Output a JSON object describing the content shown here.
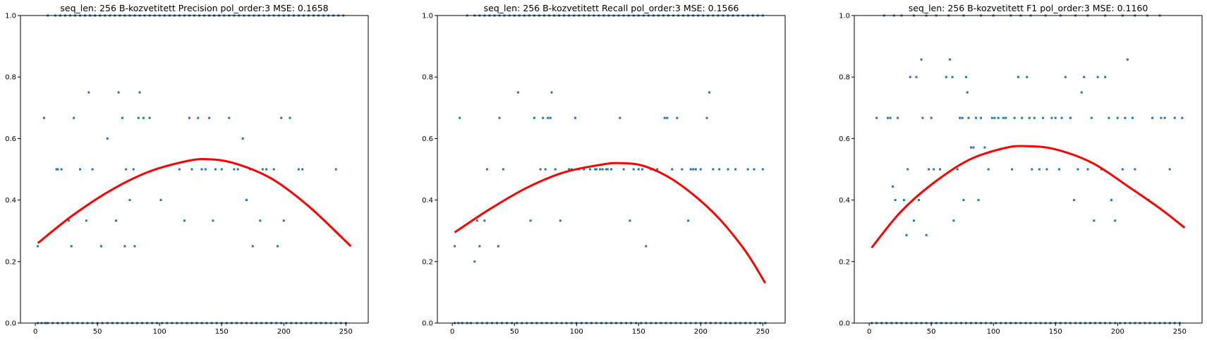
{
  "colors": {
    "scatter": "#1f77b4",
    "fit": "#ff0000",
    "axes": "#000000"
  },
  "chart_data": [
    {
      "type": "scatter",
      "title": "seq_len: 256    B-kozvetitett   Precision   pol_order:3   MSE: 0.1658",
      "xlim": [
        -12,
        268
      ],
      "ylim": [
        0,
        1
      ],
      "xticks": [
        0,
        50,
        100,
        150,
        200,
        250
      ],
      "yticks": [
        0.0,
        0.2,
        0.4,
        0.6,
        0.8,
        1.0
      ],
      "grid": false,
      "fit_curve": {
        "x": [
          2,
          30,
          60,
          90,
          120,
          138,
          160,
          190,
          220,
          254
        ],
        "y": [
          0.26,
          0.35,
          0.43,
          0.49,
          0.525,
          0.533,
          0.52,
          0.47,
          0.38,
          0.25
        ]
      },
      "points": {
        "x": [
          2,
          5,
          8,
          10,
          14,
          18,
          22,
          26,
          30,
          34,
          38,
          42,
          46,
          50,
          54,
          58,
          62,
          66,
          70,
          74,
          78,
          82,
          86,
          90,
          94,
          98,
          102,
          106,
          110,
          114,
          118,
          122,
          126,
          130,
          134,
          138,
          142,
          146,
          150,
          154,
          158,
          162,
          166,
          170,
          174,
          178,
          182,
          186,
          190,
          194,
          198,
          202,
          206,
          210,
          214,
          218,
          222,
          226,
          230,
          234,
          238,
          242,
          246,
          250,
          10,
          16,
          20,
          24,
          28,
          32,
          36,
          40,
          44,
          48,
          52,
          56,
          60,
          64,
          68,
          72,
          76,
          80,
          84,
          88,
          92,
          96,
          100,
          104,
          108,
          112,
          116,
          120,
          124,
          128,
          132,
          136,
          140,
          144,
          148,
          152,
          156,
          160,
          164,
          168,
          172,
          176,
          180,
          184,
          188,
          192,
          196,
          200,
          204,
          208,
          212,
          216,
          220,
          224,
          228,
          232,
          236,
          240,
          244,
          248,
          2,
          7,
          17,
          18,
          21,
          27,
          29,
          31,
          36,
          41,
          43,
          46,
          53,
          58,
          65,
          67,
          70,
          72,
          73,
          76,
          79,
          80,
          83,
          84,
          87,
          92,
          101,
          116,
          120,
          124,
          126,
          131,
          134,
          137,
          140,
          143,
          145,
          150,
          156,
          160,
          163,
          167,
          170,
          173,
          175,
          181,
          183,
          186,
          192,
          195,
          198,
          200,
          205,
          212,
          215,
          242
        ],
        "y": [
          0,
          0,
          0,
          0,
          0,
          0,
          0,
          0,
          0,
          0,
          0,
          0,
          0,
          0,
          0,
          0,
          0,
          0,
          0,
          0,
          0,
          0,
          0,
          0,
          0,
          0,
          0,
          0,
          0,
          0,
          0,
          0,
          0,
          0,
          0,
          0,
          0,
          0,
          0,
          0,
          0,
          0,
          0,
          0,
          0,
          0,
          0,
          0,
          0,
          0,
          0,
          0,
          0,
          0,
          0,
          0,
          0,
          0,
          0,
          0,
          0,
          0,
          0,
          0,
          1,
          1,
          1,
          1,
          1,
          1,
          1,
          1,
          1,
          1,
          1,
          1,
          1,
          1,
          1,
          1,
          1,
          1,
          1,
          1,
          1,
          1,
          1,
          1,
          1,
          1,
          1,
          1,
          1,
          1,
          1,
          1,
          1,
          1,
          1,
          1,
          1,
          1,
          1,
          1,
          1,
          1,
          1,
          1,
          1,
          1,
          1,
          1,
          1,
          1,
          1,
          1,
          1,
          1,
          1,
          1,
          1,
          1,
          1,
          1,
          0.25,
          0.667,
          0.5,
          0.5,
          0.5,
          0.333,
          0.25,
          0.667,
          0.5,
          0.333,
          0.75,
          0.5,
          0.25,
          0.6,
          0.333,
          0.75,
          0.667,
          0.25,
          0.5,
          0.4,
          0.5,
          0.25,
          0.667,
          0.75,
          0.667,
          0.667,
          0.4,
          0.5,
          0.333,
          0.667,
          0.5,
          0.667,
          0.5,
          0.5,
          0.667,
          0.333,
          0.5,
          0.5,
          0.667,
          0.5,
          0.5,
          0.6,
          0.4,
          0.5,
          0.25,
          0.333,
          0.5,
          0.5,
          0.5,
          0.25,
          0.667,
          0.333,
          0.667,
          0.5,
          0.5,
          0.5
        ]
      }
    },
    {
      "type": "scatter",
      "title": "seq_len: 256    B-kozvetitett    Recall   pol_order:3   MSE: 0.1566",
      "xlim": [
        -12,
        268
      ],
      "ylim": [
        0,
        1
      ],
      "xticks": [
        0,
        50,
        100,
        150,
        200,
        250
      ],
      "yticks": [
        0.0,
        0.2,
        0.4,
        0.6,
        0.8,
        1.0
      ],
      "grid": false,
      "fit_curve": {
        "x": [
          2,
          30,
          60,
          90,
          120,
          135,
          155,
          180,
          210,
          235,
          252
        ],
        "y": [
          0.295,
          0.37,
          0.44,
          0.49,
          0.515,
          0.52,
          0.51,
          0.46,
          0.36,
          0.24,
          0.13
        ]
      },
      "points": {
        "x": [
          2,
          5,
          8,
          12,
          15,
          20,
          24,
          28,
          32,
          36,
          40,
          44,
          48,
          52,
          56,
          60,
          64,
          68,
          72,
          76,
          80,
          84,
          88,
          92,
          96,
          100,
          104,
          108,
          112,
          116,
          120,
          124,
          128,
          132,
          136,
          140,
          144,
          148,
          152,
          156,
          160,
          164,
          168,
          172,
          176,
          180,
          184,
          188,
          192,
          196,
          200,
          204,
          208,
          212,
          216,
          220,
          224,
          228,
          232,
          236,
          240,
          244,
          248,
          252,
          12,
          18,
          22,
          26,
          30,
          34,
          38,
          42,
          46,
          50,
          54,
          58,
          62,
          66,
          70,
          74,
          78,
          82,
          86,
          90,
          94,
          98,
          102,
          106,
          110,
          114,
          118,
          122,
          126,
          130,
          134,
          138,
          142,
          146,
          150,
          154,
          158,
          162,
          166,
          170,
          174,
          178,
          182,
          186,
          190,
          194,
          198,
          202,
          206,
          210,
          214,
          218,
          222,
          226,
          230,
          234,
          238,
          242,
          246,
          250,
          2,
          6,
          18,
          20,
          22,
          26,
          28,
          37,
          38,
          41,
          53,
          63,
          66,
          71,
          73,
          75,
          77,
          79,
          80,
          83,
          87,
          94,
          96,
          99,
          102,
          106,
          111,
          115,
          116,
          119,
          121,
          124,
          125,
          128,
          135,
          138,
          143,
          146,
          150,
          153,
          156,
          160,
          165,
          171,
          173,
          177,
          181,
          185,
          190,
          192,
          194,
          196,
          200,
          205,
          207,
          210,
          215,
          222,
          228,
          238,
          243,
          250
        ],
        "y": [
          0,
          0,
          0,
          0,
          0,
          0,
          0,
          0,
          0,
          0,
          0,
          0,
          0,
          0,
          0,
          0,
          0,
          0,
          0,
          0,
          0,
          0,
          0,
          0,
          0,
          0,
          0,
          0,
          0,
          0,
          0,
          0,
          0,
          0,
          0,
          0,
          0,
          0,
          0,
          0,
          0,
          0,
          0,
          0,
          0,
          0,
          0,
          0,
          0,
          0,
          0,
          0,
          0,
          0,
          0,
          0,
          0,
          0,
          0,
          0,
          0,
          0,
          0,
          0,
          1,
          1,
          1,
          1,
          1,
          1,
          1,
          1,
          1,
          1,
          1,
          1,
          1,
          1,
          1,
          1,
          1,
          1,
          1,
          1,
          1,
          1,
          1,
          1,
          1,
          1,
          1,
          1,
          1,
          1,
          1,
          1,
          1,
          1,
          1,
          1,
          1,
          1,
          1,
          1,
          1,
          1,
          1,
          1,
          1,
          1,
          1,
          1,
          1,
          1,
          1,
          1,
          1,
          1,
          1,
          1,
          1,
          1,
          1,
          1,
          0.25,
          0.667,
          0.2,
          0.333,
          0.25,
          0.333,
          0.5,
          0.25,
          0.667,
          0.5,
          0.75,
          0.333,
          0.667,
          0.5,
          0.667,
          0.5,
          0.667,
          0.667,
          0.75,
          0.5,
          0.333,
          0.5,
          0.5,
          0.667,
          0.5,
          0.5,
          0.5,
          0.5,
          0.5,
          0.5,
          0.5,
          0.5,
          0.5,
          0.5,
          0.667,
          0.5,
          0.333,
          0.5,
          0.5,
          0.5,
          0.25,
          0.5,
          0.5,
          0.667,
          0.667,
          0.5,
          0.667,
          0.5,
          0.333,
          0.5,
          0.5,
          0.5,
          0.5,
          0.667,
          0.75,
          0.5,
          0.5,
          0.5,
          0.5,
          0.5,
          0.5,
          0.5
        ]
      }
    },
    {
      "type": "scatter",
      "title": "seq_len: 256    B-kozvetitett    F1   pol_order:3   MSE: 0.1160",
      "xlim": [
        -12,
        268
      ],
      "ylim": [
        0,
        1
      ],
      "xticks": [
        0,
        50,
        100,
        150,
        200,
        250
      ],
      "yticks": [
        0.0,
        0.2,
        0.4,
        0.6,
        0.8,
        1.0
      ],
      "grid": false,
      "fit_curve": {
        "x": [
          2,
          25,
          50,
          80,
          110,
          128,
          150,
          180,
          210,
          235,
          254
        ],
        "y": [
          0.245,
          0.36,
          0.45,
          0.53,
          0.57,
          0.575,
          0.565,
          0.52,
          0.44,
          0.37,
          0.31
        ]
      },
      "points": {
        "x": [
          2,
          6,
          10,
          14,
          18,
          22,
          26,
          30,
          34,
          38,
          42,
          46,
          50,
          54,
          58,
          62,
          66,
          70,
          74,
          78,
          82,
          86,
          90,
          94,
          98,
          102,
          106,
          110,
          114,
          118,
          122,
          126,
          130,
          134,
          138,
          142,
          146,
          150,
          154,
          158,
          162,
          166,
          170,
          174,
          178,
          182,
          186,
          190,
          194,
          198,
          202,
          206,
          210,
          214,
          218,
          222,
          226,
          230,
          234,
          238,
          242,
          246,
          250,
          12,
          20,
          26,
          36,
          46,
          54,
          64,
          76,
          90,
          100,
          114,
          122,
          130,
          142,
          154,
          166,
          176,
          190,
          204,
          214,
          224,
          234,
          6,
          15,
          17,
          19,
          21,
          23,
          28,
          30,
          31,
          33,
          36,
          38,
          40,
          42,
          43,
          46,
          48,
          50,
          52,
          57,
          62,
          65,
          67,
          68,
          71,
          73,
          75,
          76,
          78,
          79,
          80,
          82,
          84,
          86,
          88,
          90,
          93,
          96,
          99,
          101,
          104,
          108,
          110,
          115,
          117,
          120,
          123,
          127,
          129,
          131,
          133,
          137,
          140,
          143,
          147,
          150,
          153,
          155,
          158,
          162,
          165,
          168,
          171,
          173,
          176,
          179,
          181,
          184,
          187,
          190,
          193,
          195,
          198,
          200,
          204,
          206,
          208,
          212,
          214,
          225,
          228,
          235,
          238,
          242,
          246,
          252
        ],
        "y": [
          0,
          0,
          0,
          0,
          0,
          0,
          0,
          0,
          0,
          0,
          0,
          0,
          0,
          0,
          0,
          0,
          0,
          0,
          0,
          0,
          0,
          0,
          0,
          0,
          0,
          0,
          0,
          0,
          0,
          0,
          0,
          0,
          0,
          0,
          0,
          0,
          0,
          0,
          0,
          0,
          0,
          0,
          0,
          0,
          0,
          0,
          0,
          0,
          0,
          0,
          0,
          0,
          0,
          0,
          0,
          0,
          0,
          0,
          0,
          0,
          0,
          0,
          0,
          1,
          1,
          1,
          1,
          1,
          1,
          1,
          1,
          1,
          1,
          1,
          1,
          1,
          1,
          1,
          1,
          1,
          1,
          1,
          1,
          1,
          1,
          0.667,
          0.667,
          0.667,
          0.444,
          0.4,
          0.667,
          0.4,
          0.286,
          0.5,
          0.8,
          0.333,
          0.8,
          0.4,
          0.857,
          0.667,
          0.286,
          0.5,
          0.667,
          0.5,
          0.5,
          0.8,
          0.857,
          0.8,
          0.333,
          0.5,
          0.667,
          0.667,
          0.4,
          0.8,
          0.75,
          0.667,
          0.571,
          0.571,
          0.667,
          0.4,
          0.667,
          0.571,
          0.5,
          0.667,
          0.667,
          0.667,
          0.667,
          0.667,
          0.5,
          0.667,
          0.8,
          0.667,
          0.8,
          0.667,
          0.5,
          0.667,
          0.5,
          0.667,
          0.5,
          0.667,
          0.667,
          0.5,
          0.667,
          0.8,
          0.667,
          0.4,
          0.5,
          0.75,
          0.8,
          0.5,
          0.667,
          0.333,
          0.8,
          0.5,
          0.8,
          0.667,
          0.4,
          0.333,
          0.667,
          0.5,
          0.667,
          0.857,
          0.667,
          0.5,
          0.4,
          0.667,
          0.667,
          0.667,
          0.5,
          0.667,
          0.667
        ]
      }
    }
  ]
}
